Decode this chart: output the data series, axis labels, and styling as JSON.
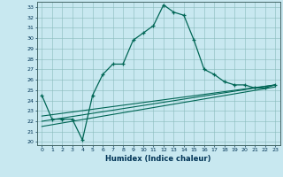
{
  "xlabel": "Humidex (Indice chaleur)",
  "bg_color": "#c8e8f0",
  "grid_color": "#88bbbb",
  "line_color": "#006655",
  "xlim": [
    -0.5,
    23.5
  ],
  "ylim": [
    19.7,
    33.5
  ],
  "xticks": [
    0,
    1,
    2,
    3,
    4,
    5,
    6,
    7,
    8,
    9,
    10,
    11,
    12,
    13,
    14,
    15,
    16,
    17,
    18,
    19,
    20,
    21,
    22,
    23
  ],
  "yticks": [
    20,
    21,
    22,
    23,
    24,
    25,
    26,
    27,
    28,
    29,
    30,
    31,
    32,
    33
  ],
  "line1_x": [
    0,
    1,
    2,
    3,
    4,
    5,
    6,
    7,
    8,
    9,
    10,
    11,
    12,
    13,
    14,
    15,
    16,
    17,
    18,
    19,
    20,
    21,
    22,
    23
  ],
  "line1_y": [
    24.5,
    22.2,
    22.2,
    22.2,
    20.2,
    24.5,
    26.5,
    27.5,
    27.5,
    29.8,
    30.5,
    31.2,
    33.2,
    32.5,
    32.2,
    29.8,
    27.0,
    26.5,
    25.8,
    25.5,
    25.5,
    25.2,
    25.2,
    25.5
  ],
  "line2_x": [
    0,
    23
  ],
  "line2_y": [
    22.5,
    25.5
  ],
  "line3_x": [
    0,
    23
  ],
  "line3_y": [
    22.0,
    25.5
  ],
  "line4_x": [
    0,
    23
  ],
  "line4_y": [
    21.5,
    25.3
  ]
}
